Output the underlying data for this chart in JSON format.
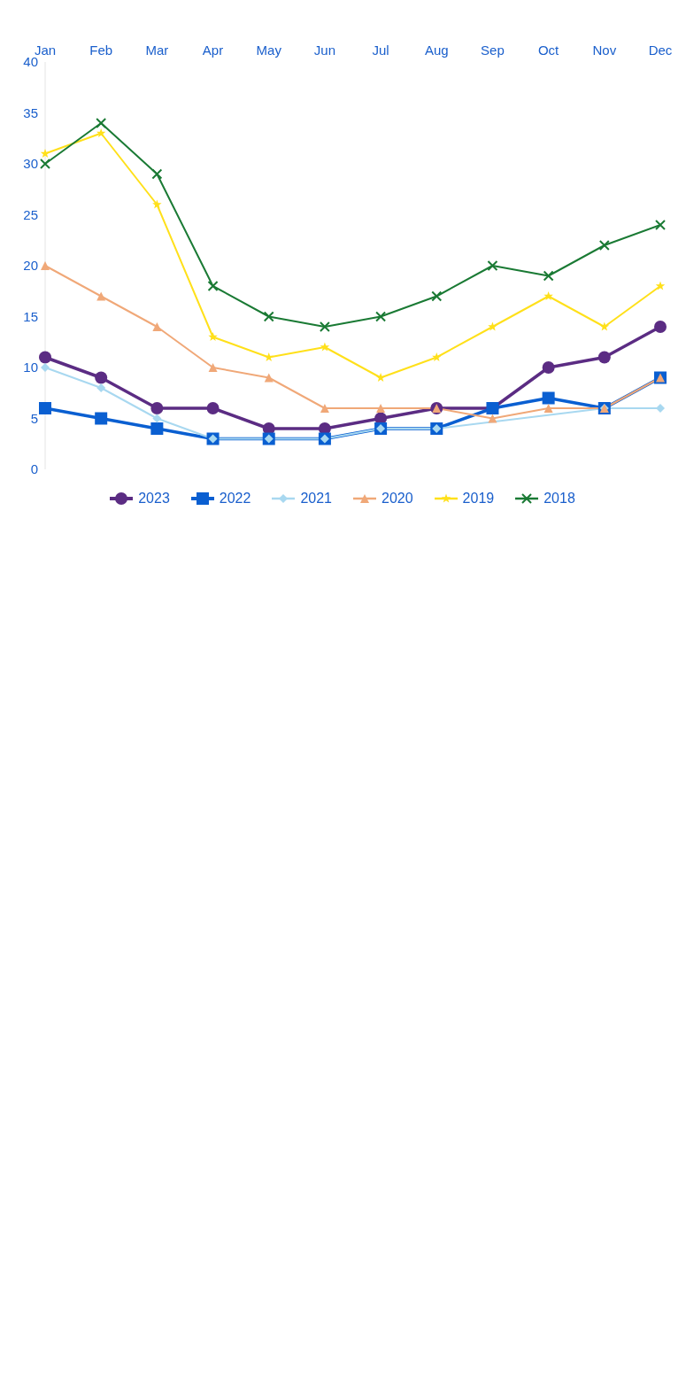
{
  "chart_data": {
    "type": "line",
    "categories": [
      "Jan",
      "Feb",
      "Mar",
      "Apr",
      "May",
      "Jun",
      "Jul",
      "Aug",
      "Sep",
      "Oct",
      "Nov",
      "Dec"
    ],
    "series": [
      {
        "name": "2023",
        "color": "#5b2c83",
        "marker": "circle",
        "values": [
          11,
          9,
          6,
          6,
          4,
          4,
          5,
          6,
          6,
          10,
          11,
          14
        ]
      },
      {
        "name": "2022",
        "color": "#0a5fd1",
        "marker": "square",
        "values": [
          6,
          5,
          4,
          3,
          3,
          3,
          4,
          4,
          6,
          7,
          6,
          9
        ]
      },
      {
        "name": "2021",
        "color": "#a8d8f0",
        "marker": "diamond",
        "values": [
          10,
          8,
          5,
          3,
          3,
          3,
          4,
          4,
          null,
          null,
          6,
          6
        ]
      },
      {
        "name": "2020",
        "color": "#f0a878",
        "marker": "triangle",
        "values": [
          20,
          17,
          14,
          10,
          9,
          6,
          6,
          6,
          5,
          6,
          6,
          9
        ]
      },
      {
        "name": "2019",
        "color": "#ffe01a",
        "marker": "star",
        "values": [
          31,
          33,
          26,
          13,
          11,
          12,
          9,
          11,
          14,
          17,
          14,
          18
        ]
      },
      {
        "name": "2018",
        "color": "#1a7a34",
        "marker": "cross",
        "values": [
          30,
          34,
          29,
          18,
          15,
          14,
          15,
          17,
          20,
          19,
          22,
          24
        ]
      }
    ],
    "ylim": [
      0,
      40
    ],
    "yticks": [
      0,
      5,
      10,
      15,
      20,
      25,
      30,
      35,
      40
    ],
    "grid": false,
    "legend": "bottom",
    "line_style": "solid"
  }
}
